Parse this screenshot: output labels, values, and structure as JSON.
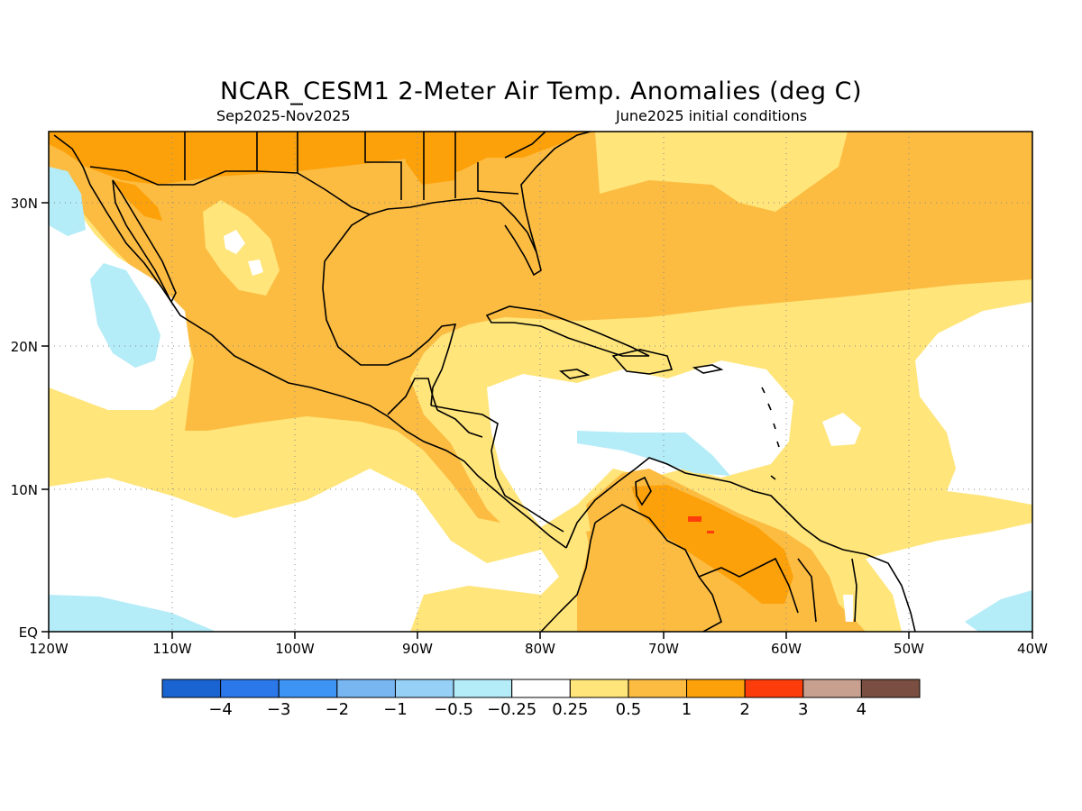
{
  "header": {
    "title": "NCAR_CESM1 2-Meter Air Temp. Anomalies (deg C)",
    "period": "Sep2025-Nov2025",
    "init": "June2025 initial conditions"
  },
  "map": {
    "lon_labels": [
      "120W",
      "110W",
      "100W",
      "90W",
      "80W",
      "70W",
      "60W",
      "50W",
      "40W"
    ],
    "lat_labels": [
      "30N",
      "20N",
      "10N",
      "EQ"
    ],
    "grid": "dotted",
    "projection": "equirectangular",
    "lon_range": [
      -120,
      -40
    ],
    "lat_range": [
      0,
      35
    ]
  },
  "colorbar": {
    "labels": [
      "-4",
      "-3",
      "-2",
      "-1",
      "-0.5",
      "-0.25",
      "0.25",
      "0.5",
      "1",
      "2",
      "3",
      "4"
    ],
    "colors": [
      "#1a64d2",
      "#2b78ea",
      "#3e94f4",
      "#78b6f2",
      "#96d0f6",
      "#b4ecf8",
      "#ffffff",
      "#ffe57a",
      "#fcbc42",
      "#fca10a",
      "#fc3c0a",
      "#c8a090",
      "#7a4e40"
    ]
  },
  "palette": {
    "ocean_neutral": "#ffffff",
    "light_warm": "#ffe57a",
    "warm": "#fcbc42",
    "warmer": "#fca10a",
    "hot": "#fc3c0a",
    "cool": "#b4ecf8",
    "coast": "#000000"
  }
}
